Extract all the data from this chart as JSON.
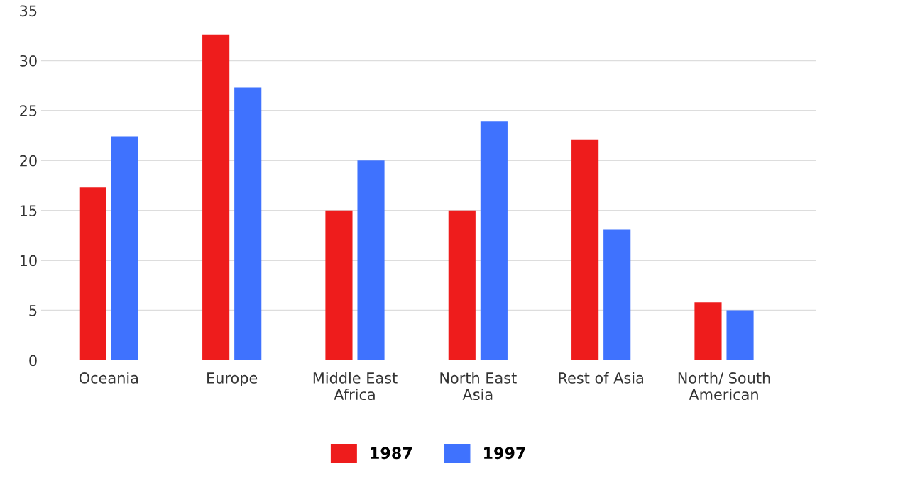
{
  "chart_data": {
    "type": "bar",
    "categories": [
      "Oceania",
      "Europe",
      "Middle East\nAfrica",
      "North East\nAsia",
      "Rest of Asia",
      "North/ South\nAmerican"
    ],
    "series": [
      {
        "name": "1987",
        "color": "#ee1c1c",
        "values": [
          17.3,
          32.6,
          15,
          15,
          22.1,
          5.8
        ]
      },
      {
        "name": "1997",
        "color": "#3f72fe",
        "values": [
          22.4,
          27.3,
          20,
          23.9,
          13.1,
          5
        ]
      }
    ],
    "ylim": [
      0,
      35
    ],
    "yticks": [
      0,
      5,
      10,
      15,
      20,
      25,
      30,
      35
    ],
    "grid": "y",
    "legend": "bottom"
  }
}
